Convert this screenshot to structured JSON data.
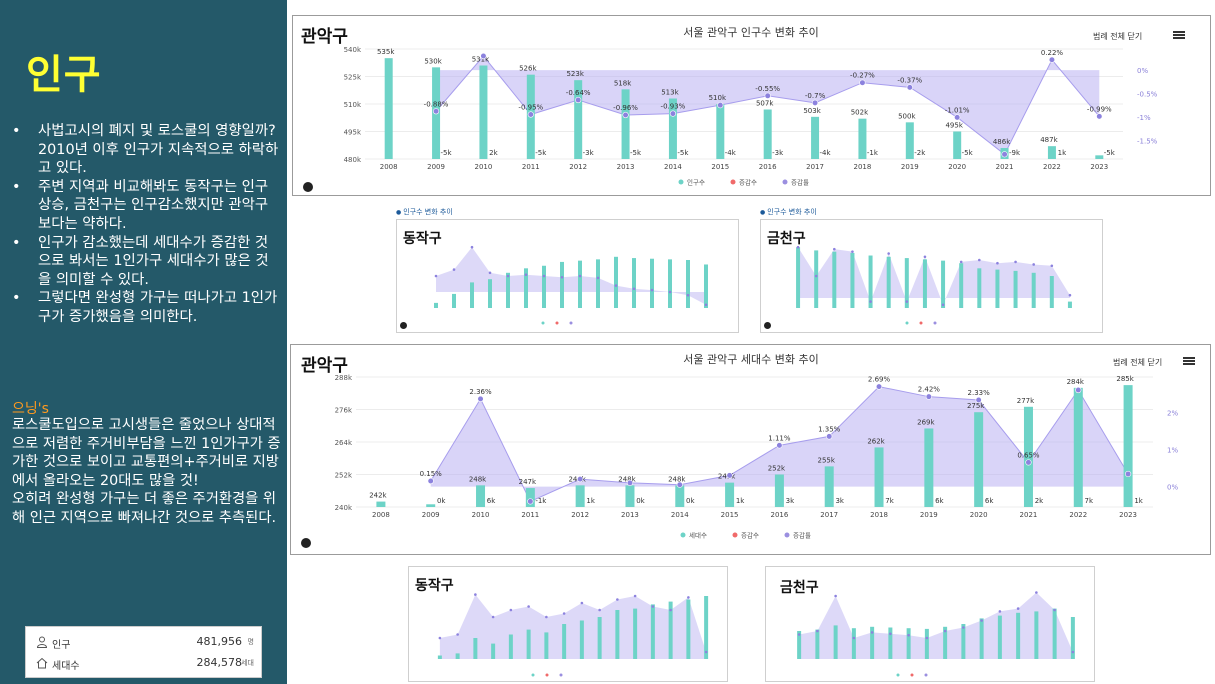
{
  "sidebar": {
    "title": "인구",
    "bullets": [
      "사법고시의 폐지 및 로스쿨의 영향일까? 2010년 이후 인구가 지속적으로 하락하고 있다.",
      "주변 지역과 비교해봐도 동작구는 인구상승, 금천구는 인구감소했지만 관악구보다는 약하다.",
      "인구가 감소했는데 세대수가 증감한 것으로 봐서는 1인가구 세대수가 많은 것을 의미할 수 있다.",
      "그렇다면 완성형 가구는 떠나가고 1인가구가 증가했음을 의미한다."
    ],
    "note_title": "으닝's",
    "note_lines": [
      "로스쿨도입으로 고시생들은 줄었으나 상대적으로 저렴한 주거비부담을 느낀 1인가구가 증가한 것으로 보이고 교통편의+주거비로 지방에서 올라오는 20대도 많을 것!",
      " 오히려 완성형 가구는 더 좋은 주거환경을 위해 인근 지역으로 빠져나간 것으로 추측된다."
    ],
    "stats": [
      {
        "label": "인구",
        "value": "481,956",
        "unit": "명"
      },
      {
        "label": "세대수",
        "value": "284,578",
        "unit": "세대"
      }
    ]
  },
  "panels": {
    "pop": {
      "label": "관악구",
      "menu": "범례 전체 닫기"
    },
    "hh": {
      "label": "관악구",
      "menu": "범례 전체 닫기"
    },
    "dongjak_pop": {
      "label": "동작구",
      "caption": "인구수 변화 추이"
    },
    "geumcheon_pop": {
      "label": "금천구",
      "caption": "인구수 변화 추이"
    },
    "dongjak_hh": {
      "label": "동작구"
    },
    "geumcheon_hh": {
      "label": "금천구"
    }
  },
  "chart_data": [
    {
      "type": "bar",
      "title": "서울 관악구 인구수 변화 추이",
      "categories": [
        "2008",
        "2009",
        "2010",
        "2011",
        "2012",
        "2013",
        "2014",
        "2015",
        "2016",
        "2017",
        "2018",
        "2019",
        "2020",
        "2021",
        "2022",
        "2023"
      ],
      "series": [
        {
          "name": "인구수",
          "type": "bar",
          "color": "#6dd3c7",
          "values": [
            535,
            530,
            531,
            526,
            523,
            518,
            513,
            510,
            507,
            503,
            502,
            500,
            495,
            486,
            487,
            482
          ],
          "labels": [
            "535k",
            "530k",
            "531k",
            "526k",
            "523k",
            "518k",
            "513k",
            "510k",
            "507k",
            "503k",
            "502k",
            "500k",
            "495k",
            "486k",
            "487k",
            ""
          ]
        },
        {
          "name": "증감수",
          "type": "label",
          "color": "#f06a6a",
          "labels": [
            "",
            "-5k",
            "2k",
            "-5k",
            "-3k",
            "-5k",
            "-5k",
            "-4k",
            "-3k",
            "-4k",
            "-1k",
            "-2k",
            "-5k",
            "-9k",
            "1k",
            "-5k"
          ]
        },
        {
          "name": "증감률",
          "type": "line",
          "color": "#9b8fe0",
          "values": [
            null,
            -0.88,
            0.3,
            -0.95,
            -0.64,
            -0.96,
            -0.93,
            -0.75,
            -0.55,
            -0.7,
            -0.27,
            -0.37,
            -1.01,
            -1.8,
            0.22,
            -0.99
          ],
          "labels": [
            "",
            "-0.88%",
            "",
            "-0.95%",
            "-0.64%",
            "-0.96%",
            "-0.93%",
            "",
            "-0.55%",
            "-0.7%",
            "-0.27%",
            "-0.37%",
            "-1.01%",
            "",
            "0.22%",
            "-0.99%"
          ]
        }
      ],
      "y_ticks": [
        "540k",
        "525k",
        "510k",
        "495k",
        "480k"
      ],
      "ylim": [
        480,
        540
      ],
      "y2_ticks": [
        "0%",
        "-0.5%",
        "-1%",
        "-1.5%"
      ],
      "y2lim": [
        -1.9,
        0.45
      ],
      "legend": "bottom"
    },
    {
      "type": "bar",
      "title": "서울 관악구 세대수 변화 추이",
      "categories": [
        "2008",
        "2009",
        "2010",
        "2011",
        "2012",
        "2013",
        "2014",
        "2015",
        "2016",
        "2017",
        "2018",
        "2019",
        "2020",
        "2021",
        "2022",
        "2023"
      ],
      "series": [
        {
          "name": "세대수",
          "type": "bar",
          "color": "#6dd3c7",
          "values": [
            242,
            241,
            248,
            247,
            248,
            248,
            248,
            249,
            252,
            255,
            262,
            269,
            275,
            277,
            284,
            285
          ],
          "labels": [
            "242k",
            "",
            "248k",
            "247k",
            "248k",
            "248k",
            "248k",
            "249k",
            "252k",
            "255k",
            "262k",
            "269k",
            "275k",
            "277k",
            "284k",
            "285k"
          ]
        },
        {
          "name": "증감수",
          "type": "label",
          "color": "#f06a6a",
          "labels": [
            "",
            "0k",
            "6k",
            "-1k",
            "1k",
            "0k",
            "0k",
            "1k",
            "3k",
            "3k",
            "7k",
            "6k",
            "6k",
            "2k",
            "7k",
            "1k"
          ]
        },
        {
          "name": "증감률",
          "type": "line",
          "color": "#9b8fe0",
          "values": [
            null,
            0.15,
            2.36,
            -0.4,
            0.2,
            0.1,
            0.05,
            0.3,
            1.11,
            1.35,
            2.69,
            2.42,
            2.33,
            0.65,
            2.6,
            0.34
          ],
          "labels": [
            "",
            "0.15%",
            "2.36%",
            "",
            "",
            "",
            "",
            "",
            "1.11%",
            "1.35%",
            "2.69%",
            "2.42%",
            "2.33%",
            "0.65%",
            "",
            ""
          ]
        }
      ],
      "y_ticks": [
        "288k",
        "276k",
        "264k",
        "252k",
        "240k"
      ],
      "ylim": [
        240,
        288
      ],
      "y2_ticks": [
        "2%",
        "1%",
        "0%"
      ],
      "y2lim": [
        -0.55,
        2.95
      ],
      "legend": "bottom"
    }
  ]
}
